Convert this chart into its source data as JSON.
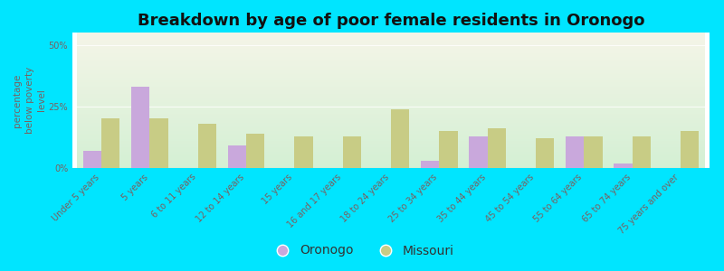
{
  "title": "Breakdown by age of poor female residents in Oronogo",
  "ylabel": "percentage\nbelow poverty\nlevel",
  "categories": [
    "Under 5 years",
    "5 years",
    "6 to 11 years",
    "12 to 14 years",
    "15 years",
    "16 and 17 years",
    "18 to 24 years",
    "25 to 34 years",
    "35 to 44 years",
    "45 to 54 years",
    "55 to 64 years",
    "65 to 74 years",
    "75 years and over"
  ],
  "oronogo": [
    7,
    33,
    0,
    9,
    0,
    0,
    0,
    3,
    13,
    0,
    13,
    2,
    0
  ],
  "missouri": [
    20,
    20,
    18,
    14,
    13,
    13,
    24,
    15,
    16,
    12,
    13,
    13,
    15
  ],
  "oronogo_color": "#c9a8dc",
  "missouri_color": "#c8cc85",
  "bar_width": 0.38,
  "ylim": [
    0,
    55
  ],
  "yticks": [
    0,
    25,
    50
  ],
  "ytick_labels": [
    "0%",
    "25%",
    "50%"
  ],
  "bg_outer": "#00e5ff",
  "bg_inner_top": "#f5f5e8",
  "bg_inner_bottom": "#d4f0d4",
  "title_fontsize": 13,
  "axis_label_fontsize": 7.5,
  "tick_fontsize": 7,
  "legend_fontsize": 10,
  "tick_color": "#7a6060",
  "label_color": "#7a6060"
}
